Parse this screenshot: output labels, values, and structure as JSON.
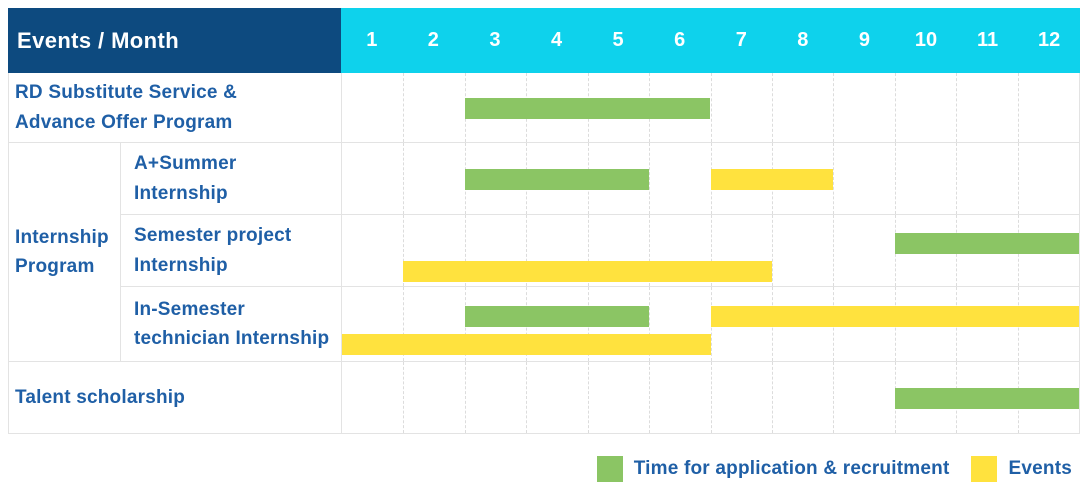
{
  "colors": {
    "header_bg": "#0d4a7f",
    "months_bg": "#0ed2ec",
    "application_bar": "#8bc564",
    "event_bar": "#ffe23e",
    "label_text": "#1f5fa6",
    "header_text": "#ffffff"
  },
  "header": {
    "label": "Events / Month",
    "months": [
      "1",
      "2",
      "3",
      "4",
      "5",
      "6",
      "7",
      "8",
      "9",
      "10",
      "11",
      "12"
    ]
  },
  "body": [
    {
      "type": "row",
      "label": "RD Substitute Service &\nAdvance Offer Program",
      "lines": 1,
      "bars": [
        {
          "kind": "application",
          "start_month": 3,
          "end_month": 6,
          "line": 0
        }
      ]
    },
    {
      "type": "group",
      "label": "Internship\nProgram",
      "rows": [
        {
          "label": "A+Summer\nInternship",
          "lines": 1,
          "bars": [
            {
              "kind": "application",
              "start_month": 3,
              "end_month": 5,
              "line": 0
            },
            {
              "kind": "event",
              "start_month": 7,
              "end_month": 8,
              "line": 0
            }
          ]
        },
        {
          "label": "Semester project\nInternship",
          "lines": 2,
          "bars": [
            {
              "kind": "application",
              "start_month": 10,
              "end_month": 12,
              "line": 0
            },
            {
              "kind": "event",
              "start_month": 2,
              "end_month": 7,
              "line": 1
            }
          ]
        },
        {
          "label": "In-Semester\ntechnician Internship",
          "lines": 2,
          "bars": [
            {
              "kind": "application",
              "start_month": 3,
              "end_month": 5,
              "line": 0
            },
            {
              "kind": "event",
              "start_month": 7,
              "end_month": 12,
              "line": 0
            },
            {
              "kind": "event",
              "start_month": 1,
              "end_month": 6,
              "line": 1
            }
          ]
        }
      ]
    },
    {
      "type": "row",
      "label": "Talent scholarship",
      "lines": 1,
      "bars": [
        {
          "kind": "application",
          "start_month": 10,
          "end_month": 12,
          "line": 0
        }
      ]
    }
  ],
  "legend": [
    {
      "kind": "application",
      "label": "Time for application & recruitment"
    },
    {
      "kind": "event",
      "label": "Events"
    }
  ],
  "chart_data": {
    "type": "table",
    "subtype": "gantt",
    "title": "Events / Month",
    "x_label": "Month",
    "x_ticks": [
      "1",
      "2",
      "3",
      "4",
      "5",
      "6",
      "7",
      "8",
      "9",
      "10",
      "11",
      "12"
    ],
    "legend": [
      "Time for application & recruitment",
      "Events"
    ],
    "legend_position": "bottom-right",
    "grid": true,
    "rows": [
      {
        "event": "RD Substitute Service & Advance Offer Program",
        "group": null,
        "application_recruitment_months": [
          [
            3,
            6
          ]
        ],
        "event_months": []
      },
      {
        "event": "A+Summer Internship",
        "group": "Internship Program",
        "application_recruitment_months": [
          [
            3,
            5
          ]
        ],
        "event_months": [
          [
            7,
            8
          ]
        ]
      },
      {
        "event": "Semester project Internship",
        "group": "Internship Program",
        "application_recruitment_months": [
          [
            10,
            12
          ]
        ],
        "event_months": [
          [
            2,
            7
          ]
        ]
      },
      {
        "event": "In-Semester technician Internship",
        "group": "Internship Program",
        "application_recruitment_months": [
          [
            3,
            5
          ]
        ],
        "event_months": [
          [
            1,
            6
          ],
          [
            7,
            12
          ]
        ]
      },
      {
        "event": "Talent scholarship",
        "group": null,
        "application_recruitment_months": [
          [
            10,
            12
          ]
        ],
        "event_months": []
      }
    ]
  }
}
